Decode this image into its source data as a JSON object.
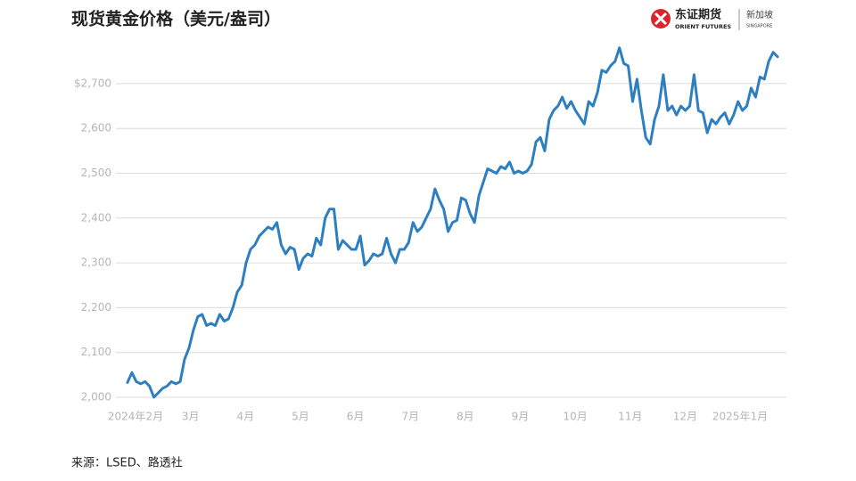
{
  "chart_data": {
    "type": "line",
    "title": "现货黄金价格（美元/盎司）",
    "source": "来源：LSED、路透社",
    "logo": {
      "name": "东证期货",
      "name_en": "ORIENT FUTURES",
      "region": "新加坡",
      "region_en": "SINGAPORE"
    },
    "xticks": [
      "2024年2月",
      "3月",
      "4月",
      "5月",
      "6月",
      "7月",
      "8月",
      "9月",
      "10月",
      "11月",
      "12月",
      "2025年1月"
    ],
    "color": "#2e7fc1",
    "values": [
      2033,
      2055,
      2035,
      2030,
      2035,
      2025,
      2000,
      2010,
      2020,
      2025,
      2035,
      2030,
      2035,
      2085,
      2110,
      2150,
      2180,
      2185,
      2160,
      2165,
      2160,
      2185,
      2170,
      2175,
      2200,
      2235,
      2250,
      2300,
      2330,
      2340,
      2360,
      2370,
      2380,
      2375,
      2390,
      2340,
      2320,
      2335,
      2330,
      2285,
      2310,
      2320,
      2315,
      2355,
      2340,
      2400,
      2420,
      2420,
      2330,
      2350,
      2340,
      2330,
      2330,
      2360,
      2295,
      2305,
      2320,
      2315,
      2320,
      2355,
      2320,
      2300,
      2330,
      2330,
      2345,
      2390,
      2370,
      2380,
      2400,
      2420,
      2465,
      2440,
      2420,
      2370,
      2390,
      2395,
      2445,
      2440,
      2410,
      2390,
      2450,
      2480,
      2510,
      2505,
      2500,
      2515,
      2510,
      2525,
      2500,
      2505,
      2500,
      2505,
      2520,
      2570,
      2580,
      2550,
      2620,
      2640,
      2650,
      2670,
      2645,
      2660,
      2640,
      2625,
      2610,
      2660,
      2650,
      2680,
      2730,
      2725,
      2740,
      2750,
      2780,
      2745,
      2740,
      2660,
      2710,
      2640,
      2580,
      2565,
      2620,
      2650,
      2720,
      2640,
      2650,
      2630,
      2650,
      2640,
      2650,
      2720,
      2640,
      2635,
      2590,
      2620,
      2610,
      2625,
      2635,
      2610,
      2630,
      2660,
      2640,
      2650,
      2690,
      2670,
      2715,
      2710,
      2750,
      2770,
      2760
    ],
    "ylim": [
      2000,
      2800
    ],
    "yticks": [
      {
        "value": 2000,
        "label": "2,000"
      },
      {
        "value": 2100,
        "label": "2,100"
      },
      {
        "value": 2200,
        "label": "2,200"
      },
      {
        "value": 2300,
        "label": "2,300"
      },
      {
        "value": 2400,
        "label": "2,400"
      },
      {
        "value": 2500,
        "label": "2,500"
      },
      {
        "value": 2600,
        "label": "2,600"
      },
      {
        "value": 2700,
        "label": "$2,700"
      }
    ],
    "grid": true
  }
}
